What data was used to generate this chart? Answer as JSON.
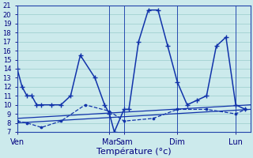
{
  "xlabel": "Température (°c)",
  "background_color": "#cceaec",
  "grid_color": "#99cccc",
  "line_color": "#1133aa",
  "ylim": [
    7,
    21
  ],
  "yticks": [
    7,
    8,
    9,
    10,
    11,
    12,
    13,
    14,
    15,
    16,
    17,
    18,
    19,
    20,
    21
  ],
  "xlim": [
    0,
    48
  ],
  "day_labels": [
    "Ven",
    "Mar",
    "Sam",
    "Dim",
    "Lun"
  ],
  "day_positions": [
    0,
    19,
    22,
    33,
    45
  ],
  "vline_positions": [
    0,
    19,
    22,
    33,
    45
  ],
  "series_main": {
    "x": [
      0,
      1,
      2,
      3,
      4,
      5,
      7,
      9,
      11,
      13,
      16,
      18,
      19,
      20,
      22,
      23,
      25,
      27,
      29,
      31,
      33,
      35,
      37,
      39,
      41,
      43,
      45,
      47
    ],
    "y": [
      14,
      12,
      11,
      11,
      10,
      10,
      10,
      10,
      11,
      15.5,
      13,
      10,
      9,
      7,
      9.5,
      9.5,
      17,
      20.5,
      20.5,
      16.5,
      12.5,
      10,
      10.5,
      11,
      16.5,
      17.5,
      10,
      9.5
    ]
  },
  "series_dashed": {
    "x": [
      0,
      2,
      5,
      9,
      14,
      19,
      22,
      28,
      33,
      39,
      45,
      47
    ],
    "y": [
      8.2,
      8.0,
      7.5,
      8.2,
      10.0,
      9.3,
      8.2,
      8.5,
      9.5,
      9.5,
      9.0,
      9.5
    ]
  },
  "trend1": {
    "x": [
      0,
      48
    ],
    "y": [
      8.5,
      10.0
    ]
  },
  "trend2": {
    "x": [
      0,
      48
    ],
    "y": [
      8.0,
      9.5
    ]
  }
}
